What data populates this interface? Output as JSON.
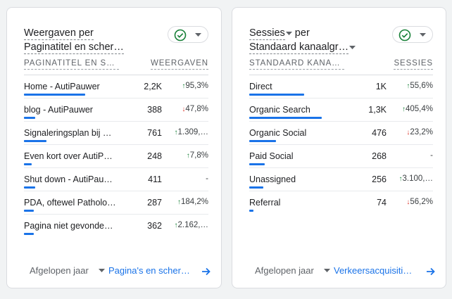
{
  "cards": [
    {
      "title_line1": "Weergaven per",
      "title_line2": "Paginatitel en scher…",
      "col_left": "PAGINATITEL EN S…",
      "col_right": "WEERGAVEN",
      "rows": [
        {
          "label": "Home - AutiPauwer",
          "value": "2,2K",
          "change": "95,3%",
          "dir": "up",
          "bar": 0.32
        },
        {
          "label": "blog - AutiPauwer",
          "value": "388",
          "change": "47,8%",
          "dir": "down",
          "bar": 0.06
        },
        {
          "label": "Signaleringsplan bij …",
          "value": "761",
          "change": "1.309,…",
          "dir": "up",
          "bar": 0.12
        },
        {
          "label": "Even kort over AutiP…",
          "value": "248",
          "change": "7,8%",
          "dir": "up",
          "bar": 0.04
        },
        {
          "label": "Shut down - AutiPau…",
          "value": "411",
          "change": "-",
          "dir": "none",
          "bar": 0.06
        },
        {
          "label": "PDA, oftewel Patholo…",
          "value": "287",
          "change": "184,2%",
          "dir": "up",
          "bar": 0.05
        },
        {
          "label": "Pagina niet gevonde…",
          "value": "362",
          "change": "2.162,…",
          "dir": "up",
          "bar": 0.05
        }
      ],
      "footer_range": "Afgelopen jaar",
      "footer_link": "Pagina's en scher…"
    },
    {
      "title_line1": "Sessies",
      "title_line1b": " per",
      "title_line2": "Standaard kanaalgr…",
      "col_left": "STANDAARD KANA…",
      "col_right": "SESSIES",
      "rows": [
        {
          "label": "Direct",
          "value": "1K",
          "change": "55,6%",
          "dir": "up",
          "bar": 0.29
        },
        {
          "label": "Organic Search",
          "value": "1,3K",
          "change": "405,4%",
          "dir": "up",
          "bar": 0.38
        },
        {
          "label": "Organic Social",
          "value": "476",
          "change": "23,2%",
          "dir": "down",
          "bar": 0.14
        },
        {
          "label": "Paid Social",
          "value": "268",
          "change": "-",
          "dir": "none",
          "bar": 0.08
        },
        {
          "label": "Unassigned",
          "value": "256",
          "change": "3.100,…",
          "dir": "up",
          "bar": 0.075
        },
        {
          "label": "Referral",
          "value": "74",
          "change": "56,2%",
          "dir": "down",
          "bar": 0.022
        }
      ],
      "footer_range": "Afgelopen jaar",
      "footer_link": "Verkeersacquisiti…"
    }
  ],
  "colors": {
    "accent": "#1a73e8",
    "up": "#188038",
    "down": "#d93025"
  }
}
